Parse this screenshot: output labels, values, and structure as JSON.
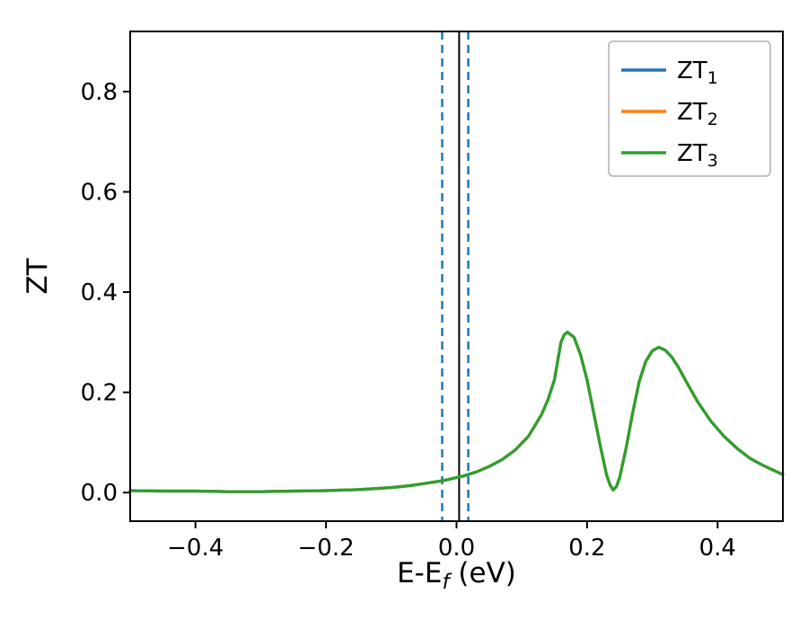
{
  "figure": {
    "background": "#ffffff"
  },
  "chart_data": {
    "type": "line",
    "title": "",
    "xlabel": {
      "prefix": "E-E",
      "sub": "f",
      "suffix": " (eV)"
    },
    "ylabel": "ZT",
    "xlim": [
      -0.5,
      0.5
    ],
    "ylim": [
      -0.057,
      0.92
    ],
    "grid": false,
    "x_ticks": [
      -0.4,
      -0.2,
      0.0,
      0.2,
      0.4
    ],
    "x_tick_labels": [
      "−0.4",
      "−0.2",
      "0.0",
      "0.2",
      "0.4"
    ],
    "y_ticks": [
      0.0,
      0.2,
      0.4,
      0.6,
      0.8
    ],
    "y_tick_labels": [
      "0.0",
      "0.2",
      "0.4",
      "0.6",
      "0.8"
    ],
    "legend": {
      "position": "upper right",
      "entries": [
        {
          "label": "ZT",
          "sub": "1",
          "color": "#1f77b4"
        },
        {
          "label": "ZT",
          "sub": "2",
          "color": "#ff7f0e"
        },
        {
          "label": "ZT",
          "sub": "3",
          "color": "#2ca02c"
        }
      ]
    },
    "vlines": [
      {
        "x": -0.022,
        "color": "#1f77b4",
        "style": "dashed"
      },
      {
        "x": 0.004,
        "color": "#000000",
        "style": "solid"
      },
      {
        "x": 0.018,
        "color": "#1f77b4",
        "style": "dashed"
      }
    ],
    "x": [
      -0.5,
      -0.45,
      -0.4,
      -0.35,
      -0.3,
      -0.25,
      -0.2,
      -0.15,
      -0.1,
      -0.07,
      -0.05,
      -0.03,
      -0.02,
      -0.01,
      0.0,
      0.01,
      0.02,
      0.03,
      0.05,
      0.07,
      0.09,
      0.11,
      0.13,
      0.14,
      0.15,
      0.16,
      0.165,
      0.17,
      0.18,
      0.19,
      0.2,
      0.21,
      0.22,
      0.23,
      0.235,
      0.24,
      0.245,
      0.25,
      0.26,
      0.27,
      0.28,
      0.29,
      0.3,
      0.31,
      0.32,
      0.33,
      0.34,
      0.35,
      0.37,
      0.39,
      0.41,
      0.43,
      0.45,
      0.47,
      0.5
    ],
    "series": [
      {
        "name": "ZT1",
        "color": "#1f77b4",
        "values": [
          0.004,
          0.003,
          0.003,
          0.002,
          0.002,
          0.003,
          0.004,
          0.006,
          0.01,
          0.014,
          0.018,
          0.022,
          0.024,
          0.027,
          0.03,
          0.033,
          0.037,
          0.041,
          0.052,
          0.066,
          0.085,
          0.112,
          0.155,
          0.185,
          0.225,
          0.3,
          0.315,
          0.32,
          0.31,
          0.275,
          0.225,
          0.16,
          0.095,
          0.035,
          0.016,
          0.005,
          0.012,
          0.03,
          0.09,
          0.16,
          0.222,
          0.262,
          0.283,
          0.29,
          0.284,
          0.27,
          0.25,
          0.226,
          0.18,
          0.142,
          0.112,
          0.088,
          0.068,
          0.054,
          0.036
        ]
      },
      {
        "name": "ZT2",
        "color": "#ff7f0e",
        "values": [
          0.004,
          0.003,
          0.003,
          0.002,
          0.002,
          0.003,
          0.004,
          0.006,
          0.01,
          0.014,
          0.018,
          0.022,
          0.024,
          0.027,
          0.03,
          0.033,
          0.037,
          0.041,
          0.052,
          0.066,
          0.085,
          0.112,
          0.155,
          0.185,
          0.225,
          0.3,
          0.315,
          0.32,
          0.31,
          0.275,
          0.225,
          0.16,
          0.095,
          0.035,
          0.016,
          0.005,
          0.012,
          0.03,
          0.09,
          0.16,
          0.222,
          0.262,
          0.283,
          0.29,
          0.284,
          0.27,
          0.25,
          0.226,
          0.18,
          0.142,
          0.112,
          0.088,
          0.068,
          0.054,
          0.036
        ]
      },
      {
        "name": "ZT3",
        "color": "#2ca02c",
        "values": [
          0.004,
          0.003,
          0.003,
          0.002,
          0.002,
          0.003,
          0.004,
          0.006,
          0.01,
          0.014,
          0.018,
          0.022,
          0.024,
          0.027,
          0.03,
          0.033,
          0.037,
          0.041,
          0.052,
          0.066,
          0.085,
          0.112,
          0.155,
          0.185,
          0.225,
          0.3,
          0.315,
          0.32,
          0.31,
          0.275,
          0.225,
          0.16,
          0.095,
          0.035,
          0.016,
          0.005,
          0.012,
          0.03,
          0.09,
          0.16,
          0.222,
          0.262,
          0.283,
          0.29,
          0.284,
          0.27,
          0.25,
          0.226,
          0.18,
          0.142,
          0.112,
          0.088,
          0.068,
          0.054,
          0.036
        ]
      }
    ]
  }
}
